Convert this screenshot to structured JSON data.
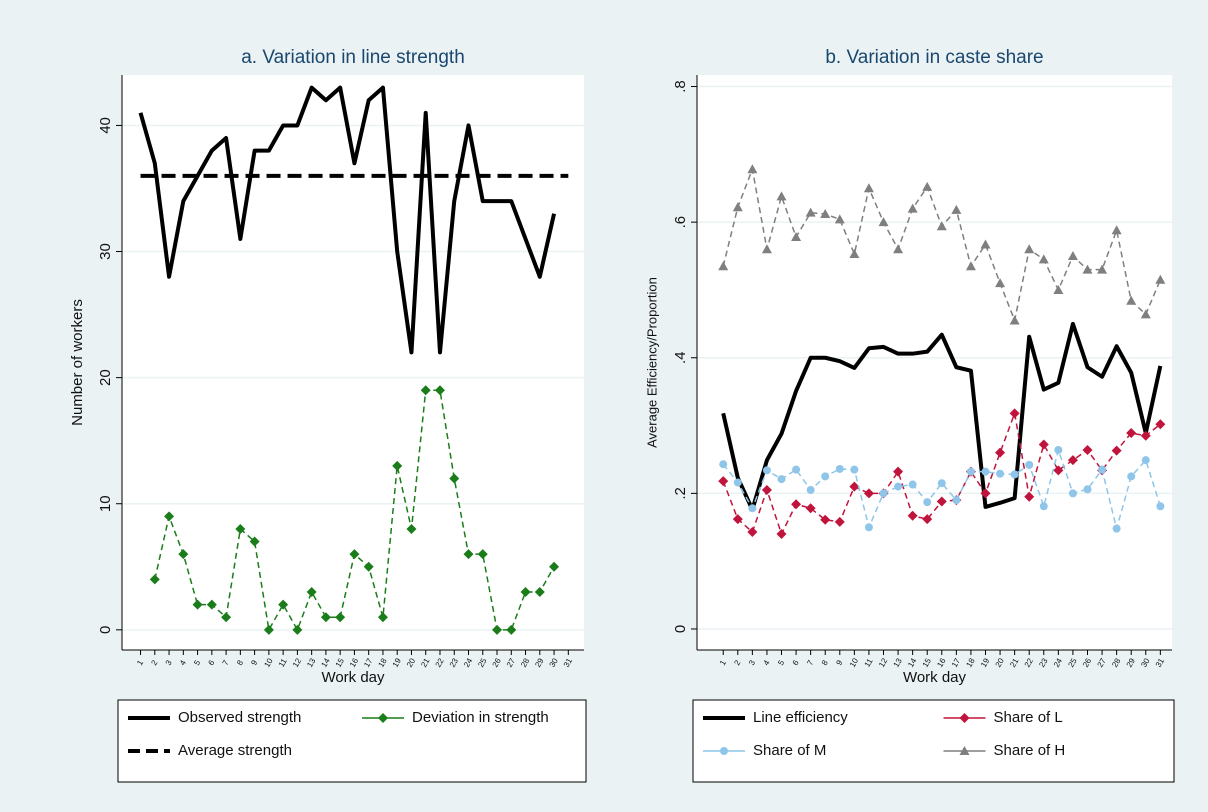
{
  "chart_data": [
    {
      "type": "line",
      "title": "a. Variation in line strength",
      "x_label": "Work day",
      "y_label": "Number of workers",
      "x": [
        1,
        2,
        3,
        4,
        5,
        6,
        7,
        8,
        9,
        10,
        11,
        12,
        13,
        14,
        15,
        16,
        17,
        18,
        19,
        20,
        21,
        22,
        23,
        24,
        25,
        26,
        27,
        28,
        29,
        30,
        31
      ],
      "xticks": [
        1,
        2,
        3,
        4,
        5,
        6,
        7,
        8,
        9,
        10,
        11,
        12,
        13,
        14,
        15,
        16,
        17,
        18,
        19,
        20,
        21,
        22,
        23,
        24,
        25,
        26,
        27,
        28,
        29,
        30,
        31
      ],
      "xlim": [
        -0.3,
        32.1
      ],
      "ylim": [
        -1.6,
        44
      ],
      "yticks": [
        0,
        10,
        20,
        30,
        40
      ],
      "grid": true,
      "legend": "bottom",
      "series": [
        {
          "name": "Observed strength",
          "color": "#000000",
          "width": 4,
          "dash": false,
          "marker": null,
          "values": [
            41,
            37,
            28,
            34,
            36,
            38,
            39,
            31,
            38,
            38,
            40,
            40,
            43,
            42,
            43,
            37,
            42,
            43,
            30,
            22,
            41,
            22,
            34,
            40,
            34,
            34,
            34,
            31,
            28,
            33,
            null
          ]
        },
        {
          "name": "Deviation in strength",
          "color": "#1a7d1a",
          "width": 1.5,
          "dash": true,
          "marker": "diamond",
          "values": [
            null,
            4,
            9,
            6,
            2,
            2,
            1,
            8,
            7,
            0,
            2,
            0,
            3,
            1,
            1,
            6,
            5,
            1,
            13,
            8,
            19,
            19,
            12,
            6,
            6,
            0,
            0,
            3,
            3,
            5,
            null
          ]
        },
        {
          "name": "Average strength",
          "color": "#000000",
          "width": 4,
          "dash": true,
          "marker": null,
          "values": [
            36,
            36,
            36,
            36,
            36,
            36,
            36,
            36,
            36,
            36,
            36,
            36,
            36,
            36,
            36,
            36,
            36,
            36,
            36,
            36,
            36,
            36,
            36,
            36,
            36,
            36,
            36,
            36,
            36,
            36,
            36
          ]
        }
      ]
    },
    {
      "type": "line",
      "title": "b. Variation in caste share",
      "x_label": "Work day",
      "y_label": "Average Efficiency/Proportion",
      "x": [
        1,
        2,
        3,
        4,
        5,
        6,
        7,
        8,
        9,
        10,
        11,
        12,
        13,
        14,
        15,
        16,
        17,
        18,
        19,
        20,
        21,
        22,
        23,
        24,
        25,
        26,
        27,
        28,
        29,
        30,
        31
      ],
      "xticks": [
        1,
        2,
        3,
        4,
        5,
        6,
        7,
        8,
        9,
        10,
        11,
        12,
        13,
        14,
        15,
        16,
        17,
        18,
        19,
        20,
        21,
        22,
        23,
        24,
        25,
        26,
        27,
        28,
        29,
        30,
        31
      ],
      "xlim": [
        -0.8,
        31.8
      ],
      "ylim": [
        -0.031,
        0.817
      ],
      "yticks": [
        {
          "value": 0,
          "label": "0"
        },
        {
          "value": 0.2,
          "label": ".2"
        },
        {
          "value": 0.4,
          "label": ".4"
        },
        {
          "value": 0.6,
          "label": ".6"
        },
        {
          "value": 0.8,
          "label": ".8"
        }
      ],
      "grid": true,
      "legend": "bottom",
      "series": [
        {
          "name": "Line efficiency",
          "color": "#000000",
          "width": 4,
          "dash": false,
          "marker": null,
          "values": [
            0.318,
            0.223,
            0.176,
            0.249,
            0.288,
            0.351,
            0.4,
            0.4,
            0.395,
            0.385,
            0.414,
            0.416,
            0.406,
            0.406,
            0.409,
            0.434,
            0.386,
            0.381,
            0.18,
            0.186,
            0.193,
            0.431,
            0.353,
            0.363,
            0.45,
            0.386,
            0.372,
            0.417,
            0.378,
            0.289,
            0.388
          ]
        },
        {
          "name": "Share of L",
          "color": "#c0143c",
          "width": 1.5,
          "dash": true,
          "marker": "diamond",
          "values": [
            0.218,
            0.162,
            0.143,
            0.205,
            0.14,
            0.184,
            0.178,
            0.161,
            0.158,
            0.21,
            0.2,
            0.2,
            0.232,
            0.167,
            0.162,
            0.188,
            0.19,
            0.232,
            0.2,
            0.26,
            0.318,
            0.195,
            0.272,
            0.234,
            0.249,
            0.264,
            0.234,
            0.263,
            0.289,
            0.285,
            0.302
          ]
        },
        {
          "name": "Share of M",
          "color": "#8ec5e8",
          "width": 1.5,
          "dash": true,
          "marker": "circle",
          "values": [
            0.243,
            0.216,
            0.178,
            0.234,
            0.221,
            0.235,
            0.205,
            0.225,
            0.236,
            0.235,
            0.15,
            0.2,
            0.21,
            0.213,
            0.187,
            0.215,
            0.19,
            0.232,
            0.232,
            0.229,
            0.228,
            0.242,
            0.181,
            0.264,
            0.2,
            0.206,
            0.235,
            0.148,
            0.225,
            0.249,
            0.181
          ]
        },
        {
          "name": "Share of H",
          "color": "#7f7f7f",
          "width": 1.5,
          "dash": true,
          "marker": "triangle",
          "values": [
            0.535,
            0.622,
            0.678,
            0.56,
            0.638,
            0.578,
            0.614,
            0.612,
            0.604,
            0.553,
            0.65,
            0.6,
            0.56,
            0.62,
            0.652,
            0.594,
            0.618,
            0.535,
            0.567,
            0.51,
            0.455,
            0.56,
            0.545,
            0.5,
            0.55,
            0.53,
            0.53,
            0.588,
            0.484,
            0.464,
            0.515
          ]
        }
      ]
    }
  ]
}
